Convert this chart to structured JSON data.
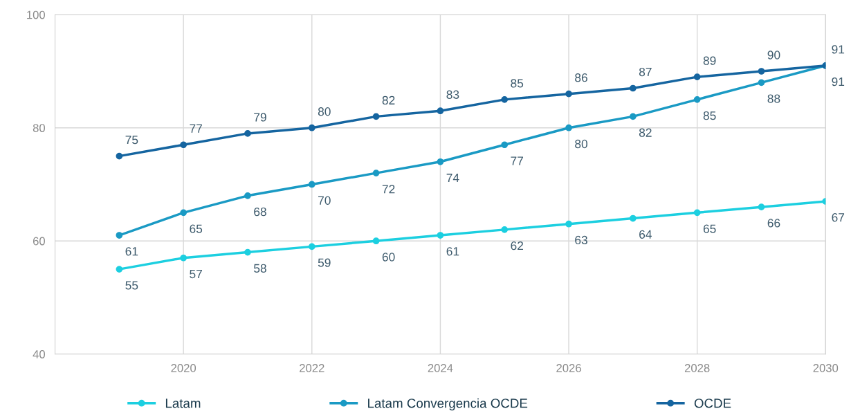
{
  "chart_data": {
    "type": "line",
    "x": [
      2019,
      2020,
      2021,
      2022,
      2023,
      2024,
      2025,
      2026,
      2027,
      2028,
      2029,
      2030
    ],
    "series": [
      {
        "name": "Latam",
        "color": "#1ccfe0",
        "values": [
          55,
          57,
          58,
          59,
          60,
          61,
          62,
          63,
          64,
          65,
          66,
          67
        ]
      },
      {
        "name": "Latam Convergencia OCDE",
        "color": "#1a9ac4",
        "values": [
          61,
          65,
          68,
          70,
          72,
          74,
          77,
          80,
          82,
          85,
          88,
          91
        ]
      },
      {
        "name": "OCDE",
        "color": "#1565a0",
        "values": [
          75,
          77,
          79,
          80,
          82,
          83,
          85,
          86,
          87,
          89,
          90,
          91
        ]
      }
    ],
    "xlim": [
      2018,
      2030
    ],
    "xticks": [
      2020,
      2022,
      2024,
      2026,
      2028,
      2030
    ],
    "ylim": [
      40,
      100
    ],
    "yticks": [
      40,
      60,
      80,
      100
    ],
    "grid": true,
    "legend": "bottom",
    "marker": "circle",
    "line_style": "solid",
    "data_labels": true
  }
}
